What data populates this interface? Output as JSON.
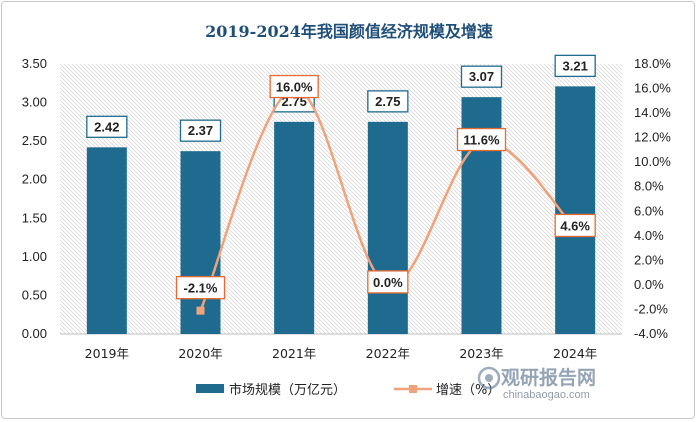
{
  "chart_data": {
    "type": "bar",
    "title": "2019-2024年我国颜值经济规模及增速",
    "categories": [
      "2019年",
      "2020年",
      "2021年",
      "2022年",
      "2023年",
      "2024年"
    ],
    "series": [
      {
        "name": "市场规模（万亿元）",
        "type": "bar",
        "axis": "left",
        "values": [
          2.42,
          2.37,
          2.75,
          2.75,
          3.07,
          3.21
        ],
        "labels": [
          "2.42",
          "2.37",
          "2.75",
          "2.75",
          "3.07",
          "3.21"
        ],
        "color": "#1e6b8f"
      },
      {
        "name": "增速（%）",
        "type": "line",
        "axis": "right",
        "values": [
          null,
          -2.1,
          16.0,
          0.0,
          11.6,
          4.6
        ],
        "labels": [
          "",
          "-2.1%",
          "16.0%",
          "0.0%",
          "11.6%",
          "4.6%"
        ],
        "color": "#f0a27a"
      }
    ],
    "y_left": {
      "min": 0,
      "max": 3.5,
      "step": 0.5,
      "ticks": [
        "0.00",
        "0.50",
        "1.00",
        "1.50",
        "2.00",
        "2.50",
        "3.00",
        "3.50"
      ]
    },
    "y_right": {
      "min": -4,
      "max": 18,
      "step": 2,
      "ticks": [
        "-4.0%",
        "-2.0%",
        "0.0%",
        "2.0%",
        "4.0%",
        "6.0%",
        "8.0%",
        "10.0%",
        "12.0%",
        "14.0%",
        "16.0%",
        "18.0%"
      ]
    },
    "legend_position": "bottom",
    "grid": false
  },
  "watermark": {
    "text": "观研报告网",
    "url": "chinabaogao.com"
  }
}
